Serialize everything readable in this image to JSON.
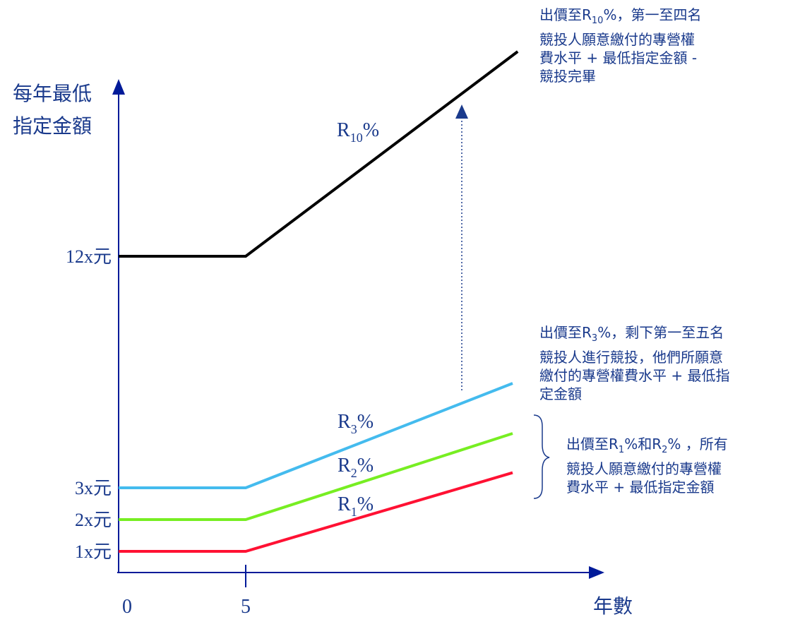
{
  "chart_data": {
    "type": "line",
    "ylabel_lines": [
      "每年最低",
      "指定金額"
    ],
    "xlabel": "年數",
    "x_ticks": [
      "0",
      "5"
    ],
    "y_ticks": [
      {
        "label": "1x元",
        "value": 1
      },
      {
        "label": "2x元",
        "value": 2
      },
      {
        "label": "3x元",
        "value": 3
      },
      {
        "label": "12x元",
        "value": 12
      }
    ],
    "series": [
      {
        "name": "R1%",
        "base": "R",
        "sub": "1",
        "pct": "%",
        "color": "#ff1133",
        "points": [
          [
            0,
            1
          ],
          [
            5,
            1
          ],
          [
            15.5,
            3.5
          ]
        ]
      },
      {
        "name": "R2%",
        "base": "R",
        "sub": "2",
        "pct": "%",
        "color": "#77ee22",
        "points": [
          [
            0,
            2
          ],
          [
            5,
            2
          ],
          [
            15.5,
            4.8
          ]
        ]
      },
      {
        "name": "R3%",
        "base": "R",
        "sub": "3",
        "pct": "%",
        "color": "#44bbee",
        "points": [
          [
            0,
            3
          ],
          [
            5,
            3
          ],
          [
            15.5,
            6.3
          ]
        ]
      },
      {
        "name": "R10%",
        "base": "R",
        "sub": "10",
        "pct": "%",
        "color": "#000000",
        "points": [
          [
            0,
            12
          ],
          [
            5,
            12
          ],
          [
            15.7,
            18.5
          ]
        ]
      }
    ]
  },
  "annotations": {
    "r10": {
      "line1_pre": "出價至R",
      "line1_sub": "10",
      "line1_post": "%，第一至四名",
      "line2": "競投人願意繳付的專營權",
      "line3": "費水平 + 最低指定金額 -",
      "line4": "競投完畢"
    },
    "r3": {
      "line1_pre": "出價至R",
      "line1_sub": "3",
      "line1_post": "%，剩下第一至五名",
      "line2": "競投人進行競投，他們所願意",
      "line3": "繳付的專營權費水平 + 最低指",
      "line4": "定金額"
    },
    "r12": {
      "line1_pre": "出價至R",
      "line1_sub_a": "1",
      "line1_mid": "%和R",
      "line1_sub_b": "2",
      "line1_post": "% ，所有",
      "line2": "競投人願意繳付的專營權",
      "line3": "費水平 + 最低指定金額"
    }
  },
  "colors": {
    "axis": "#001a99",
    "text": "#1a3a8c",
    "arrow": "#1a3a8c"
  }
}
